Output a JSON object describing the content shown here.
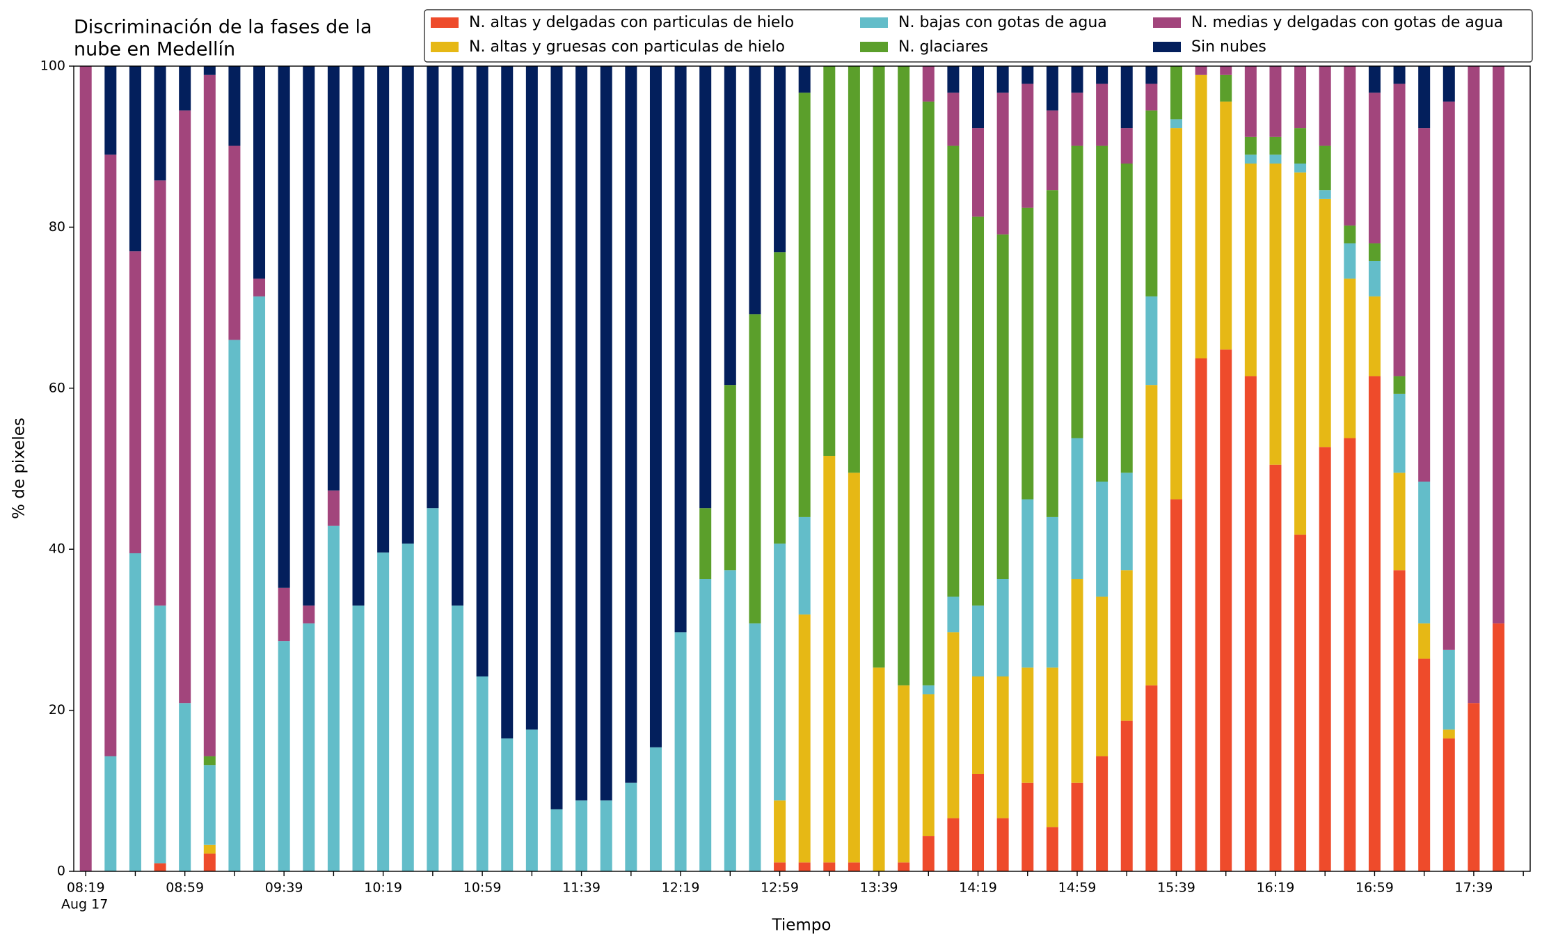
{
  "chart_data": {
    "type": "stacked_bar",
    "title": [
      "Discriminación de la fases de la",
      "nube en Medellín"
    ],
    "x_label": "Tiempo",
    "y_label": "% de pixeles",
    "x_sublabel": "Aug 17",
    "categories": [
      "08:19",
      null,
      null,
      null,
      "08:59",
      null,
      null,
      null,
      "09:39",
      null,
      null,
      null,
      "10:19",
      null,
      null,
      null,
      "10:59",
      null,
      null,
      null,
      "11:39",
      null,
      null,
      null,
      "12:19",
      null,
      null,
      null,
      "12:59",
      null,
      null,
      null,
      "13:39",
      null,
      null,
      null,
      "14:19",
      null,
      null,
      null,
      "14:59",
      null,
      null,
      null,
      "15:39",
      null,
      null,
      null,
      "16:19",
      null,
      null,
      null,
      "16:59",
      null,
      null,
      null,
      "17:39",
      null
    ],
    "ylim": [
      0,
      100
    ],
    "yticks": [
      0,
      20,
      40,
      60,
      80,
      100
    ],
    "legend": "top-right",
    "series": [
      {
        "name": "N. altas y delgadas con particulas de hielo",
        "color": "#ee4b2b",
        "values": [
          0,
          0,
          0,
          1,
          0,
          2.2,
          0,
          0,
          0,
          0,
          0,
          0,
          0,
          0,
          0,
          0,
          0,
          0,
          0,
          0,
          0,
          0,
          0,
          0,
          0,
          0,
          0,
          0,
          1.1,
          1.1,
          1.1,
          1.1,
          0,
          1.1,
          4.4,
          6.6,
          12.1,
          6.6,
          11,
          5.5,
          11,
          14.3,
          18.7,
          23.1,
          46.2,
          63.7,
          64.8,
          61.5,
          50.5,
          41.8,
          52.7,
          53.8,
          61.5,
          37.4,
          26.4,
          16.5,
          20.9,
          30.8
        ]
      },
      {
        "name": "N. altas y gruesas con particulas de hielo",
        "color": "#e6b815",
        "values": [
          0,
          0,
          0,
          0,
          0,
          1.1,
          0,
          0,
          0,
          0,
          0,
          0,
          0,
          0,
          0,
          0,
          0,
          0,
          0,
          0,
          0,
          0,
          0,
          0,
          0,
          0,
          0,
          0,
          7.7,
          30.8,
          50.5,
          48.4,
          25.3,
          22,
          17.6,
          23.1,
          12.1,
          17.6,
          14.3,
          19.8,
          25.3,
          19.8,
          18.7,
          37.3,
          46.1,
          35.2,
          30.8,
          26.4,
          37.4,
          45,
          30.8,
          19.8,
          9.9,
          12.1,
          4.4,
          1.1,
          0,
          0
        ]
      },
      {
        "name": "N. bajas con gotas de agua",
        "color": "#63bdc9",
        "values": [
          0,
          14.3,
          39.5,
          32,
          20.9,
          9.9,
          66,
          71.4,
          28.6,
          30.8,
          42.9,
          33,
          39.6,
          40.7,
          45.1,
          33,
          24.2,
          16.5,
          17.6,
          7.7,
          8.8,
          8.8,
          11,
          15.4,
          29.7,
          36.3,
          37.4,
          30.8,
          31.9,
          12.1,
          0,
          0,
          0,
          0,
          1.1,
          4.4,
          8.8,
          12.1,
          20.9,
          18.7,
          17.5,
          14.3,
          12.1,
          11,
          1.1,
          0,
          0,
          1.1,
          1.1,
          1.1,
          1.1,
          4.4,
          4.4,
          9.8,
          17.6,
          9.9,
          0,
          0
        ]
      },
      {
        "name": "N. glaciares",
        "color": "#5b9f2b",
        "values": [
          0,
          0,
          0,
          0,
          0,
          1.1,
          0,
          0,
          0,
          0,
          0,
          0,
          0,
          0,
          0,
          0,
          0,
          0,
          0,
          0,
          0,
          0,
          0,
          0,
          0,
          8.8,
          23,
          38.4,
          36.2,
          52.7,
          48.4,
          50.5,
          74.7,
          76.9,
          72.5,
          56,
          48.3,
          42.8,
          36.2,
          40.6,
          36.3,
          41.7,
          38.4,
          23.1,
          6.6,
          0,
          3.3,
          2.2,
          2.2,
          4.4,
          5.5,
          2.2,
          2.2,
          2.2,
          0,
          0,
          0,
          0
        ]
      },
      {
        "name": "N. medias y delgadas con gotas de agua",
        "color": "#a2457c",
        "values": [
          100,
          74.7,
          37.5,
          52.8,
          73.6,
          84.6,
          24.1,
          2.2,
          6.6,
          2.2,
          4.4,
          0,
          0,
          0,
          0,
          0,
          0,
          0,
          0,
          0,
          0,
          0,
          0,
          0,
          0,
          0,
          0,
          0,
          0,
          0,
          0,
          0,
          0,
          0,
          4.4,
          6.6,
          11,
          17.6,
          15.4,
          9.9,
          6.6,
          7.7,
          4.4,
          3.3,
          0,
          1.1,
          1.1,
          8.8,
          8.8,
          7.7,
          9.9,
          19.8,
          18.7,
          36.3,
          43.9,
          68.1,
          79.1,
          69.2
        ]
      },
      {
        "name": "Sin nubes",
        "color": "#031f5c",
        "values": [
          0,
          11,
          23,
          14.2,
          5.5,
          1.1,
          9.9,
          26.4,
          64.8,
          67,
          52.7,
          67,
          60.4,
          59.3,
          54.9,
          67,
          75.8,
          83.5,
          82.4,
          92.3,
          91.2,
          91.2,
          89,
          84.6,
          70.3,
          54.9,
          39.6,
          30.8,
          23.1,
          3.3,
          0,
          0,
          0,
          0,
          0,
          3.3,
          7.7,
          3.3,
          2.2,
          5.5,
          3.3,
          2.2,
          7.7,
          2.2,
          0,
          0,
          0,
          0,
          0,
          0,
          0,
          0,
          3.3,
          2.2,
          7.7,
          4.4,
          0,
          0
        ]
      }
    ]
  }
}
